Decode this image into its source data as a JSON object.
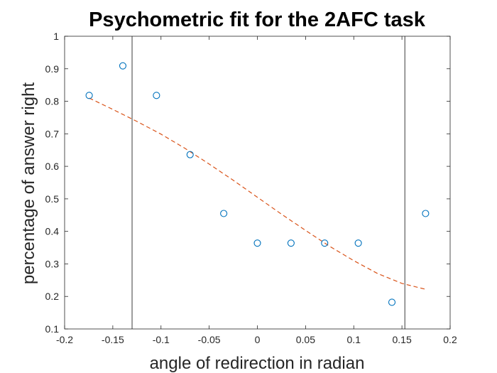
{
  "chart_data": {
    "type": "scatter",
    "title": "Psychometric fit for the 2AFC task",
    "xlabel": "angle of redirection in radian",
    "ylabel": "percentage of answer right",
    "xlim": [
      -0.2,
      0.2
    ],
    "ylim": [
      0.1,
      1
    ],
    "xticks": [
      -0.2,
      -0.15,
      -0.1,
      -0.05,
      0,
      0.05,
      0.1,
      0.15,
      0.2
    ],
    "xtick_labels": [
      "-0.2",
      "-0.15",
      "-0.1",
      "-0.05",
      "0",
      "0.05",
      "0.1",
      "0.15",
      "0.2"
    ],
    "yticks": [
      0.1,
      0.2,
      0.3,
      0.4,
      0.5,
      0.6,
      0.7,
      0.8,
      0.9,
      1
    ],
    "ytick_labels": [
      "0.1",
      "0.2",
      "0.3",
      "0.4",
      "0.5",
      "0.6",
      "0.7",
      "0.8",
      "0.9",
      "1"
    ],
    "grid": false,
    "series": [
      {
        "type": "scatter",
        "marker": "circle-open",
        "color": "#0072BD",
        "x": [
          -0.1745,
          -0.1396,
          -0.1047,
          -0.0698,
          -0.0349,
          0,
          0.0349,
          0.0698,
          0.1047,
          0.1396,
          0.1745
        ],
        "y": [
          0.818,
          0.909,
          0.818,
          0.636,
          0.455,
          0.364,
          0.364,
          0.364,
          0.364,
          0.182,
          0.455
        ]
      },
      {
        "type": "line",
        "style": "dashed",
        "color": "#D95319",
        "x": [
          -0.1745,
          -0.15,
          -0.125,
          -0.1,
          -0.075,
          -0.05,
          -0.025,
          0,
          0.025,
          0.05,
          0.075,
          0.1,
          0.125,
          0.15,
          0.1745
        ],
        "y": [
          0.81,
          0.775,
          0.738,
          0.699,
          0.655,
          0.607,
          0.557,
          0.505,
          0.453,
          0.403,
          0.354,
          0.31,
          0.27,
          0.24,
          0.222
        ]
      }
    ],
    "vlines": {
      "color": "#262626",
      "x": [
        -0.13,
        0.153
      ]
    }
  }
}
